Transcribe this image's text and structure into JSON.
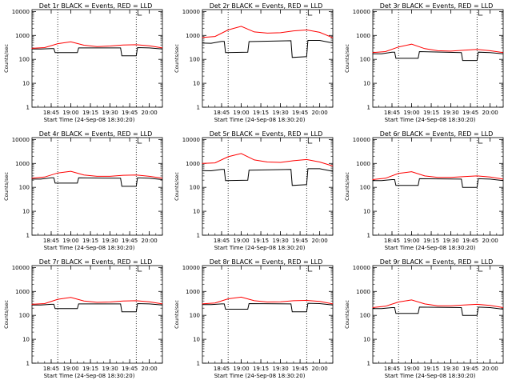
{
  "page": {
    "style": {
      "event_color": "#000000",
      "lld_color": "#ff0000",
      "background": "#ffffff",
      "axes_color": "#000000"
    }
  },
  "chart_data": [
    {
      "type": "line",
      "title": "Det 1r BLACK = Events, RED = LLD",
      "xlabel": "Start Time (24-Sep-08 18:30:20)",
      "ylabel": "Counts/sec",
      "xticks": [
        "18:45",
        "19:00",
        "19:15",
        "19:30",
        "19:45",
        "20:00"
      ],
      "yticks": [
        "1",
        "10",
        "100",
        "1000",
        "10000"
      ],
      "yscale": "log",
      "ylim": [
        1,
        12000
      ],
      "xlim": [
        "18:30:20",
        "20:10"
      ],
      "vlines": [
        "18:50",
        "19:50"
      ],
      "series": [
        {
          "name": "Events",
          "color": "#000000",
          "x": [
            "18:30",
            "18:37",
            "18:45",
            "18:47",
            "18:48",
            "19:05",
            "19:06",
            "19:38",
            "19:39",
            "19:50",
            "19:51",
            "20:00",
            "20:10"
          ],
          "y": [
            270,
            270,
            280,
            280,
            190,
            190,
            300,
            300,
            140,
            140,
            310,
            300,
            270
          ]
        },
        {
          "name": "LLD",
          "color": "#ff0000",
          "x": [
            "18:30",
            "18:40",
            "18:50",
            "19:00",
            "19:10",
            "19:20",
            "19:30",
            "19:40",
            "19:50",
            "20:00",
            "20:10"
          ],
          "y": [
            290,
            310,
            450,
            540,
            390,
            340,
            360,
            400,
            410,
            370,
            300
          ]
        }
      ]
    },
    {
      "type": "line",
      "title": "Det 2r BLACK = Events, RED = LLD",
      "xlabel": "Start Time (24-Sep-08 18:30:20)",
      "ylabel": "Counts/sec",
      "xticks": [
        "18:45",
        "19:00",
        "19:15",
        "19:30",
        "19:45",
        "20:00"
      ],
      "yticks": [
        "1",
        "10",
        "100",
        "1000",
        "10000"
      ],
      "yscale": "log",
      "ylim": [
        1,
        12000
      ],
      "xlim": [
        "18:30:20",
        "20:10"
      ],
      "vlines": [
        "18:50",
        "19:50"
      ],
      "series": [
        {
          "name": "Events",
          "color": "#000000",
          "x": [
            "18:30",
            "18:37",
            "18:45",
            "18:47",
            "18:48",
            "19:05",
            "19:06",
            "19:38",
            "19:39",
            "19:50",
            "19:51",
            "20:00",
            "20:10"
          ],
          "y": [
            480,
            470,
            560,
            560,
            190,
            200,
            550,
            600,
            120,
            130,
            620,
            620,
            480
          ]
        },
        {
          "name": "LLD",
          "color": "#ff0000",
          "x": [
            "18:30",
            "18:40",
            "18:50",
            "19:00",
            "19:10",
            "19:20",
            "19:30",
            "19:40",
            "19:50",
            "20:00",
            "20:10"
          ],
          "y": [
            820,
            900,
            1700,
            2400,
            1400,
            1250,
            1300,
            1550,
            1700,
            1350,
            800
          ]
        }
      ]
    },
    {
      "type": "line",
      "title": "Det 3r BLACK = Events, RED = LLD",
      "xlabel": "Start Time (24-Sep-08 18:30:20)",
      "ylabel": "Counts/sec",
      "xticks": [
        "18:45",
        "19:00",
        "19:15",
        "19:30",
        "19:45",
        "20:00"
      ],
      "yticks": [
        "1",
        "10",
        "100",
        "1000",
        "10000"
      ],
      "yscale": "log",
      "ylim": [
        1,
        12000
      ],
      "xlim": [
        "18:30:20",
        "20:10"
      ],
      "vlines": [
        "18:50",
        "19:50"
      ],
      "series": [
        {
          "name": "Events",
          "color": "#000000",
          "x": [
            "18:30",
            "18:37",
            "18:45",
            "18:47",
            "18:48",
            "19:05",
            "19:06",
            "19:38",
            "19:39",
            "19:50",
            "19:51",
            "20:00",
            "20:10"
          ],
          "y": [
            170,
            170,
            200,
            200,
            110,
            110,
            210,
            190,
            90,
            90,
            200,
            190,
            170
          ]
        },
        {
          "name": "LLD",
          "color": "#ff0000",
          "x": [
            "18:30",
            "18:40",
            "18:50",
            "19:00",
            "19:10",
            "19:20",
            "19:30",
            "19:40",
            "19:50",
            "20:00",
            "20:10"
          ],
          "y": [
            190,
            210,
            330,
            430,
            280,
            230,
            220,
            240,
            260,
            230,
            190
          ]
        }
      ]
    },
    {
      "type": "line",
      "title": "Det 4r BLACK = Events, RED = LLD",
      "xlabel": "Start Time (24-Sep-08 18:30:20)",
      "ylabel": "Counts/sec",
      "xticks": [
        "18:45",
        "19:00",
        "19:15",
        "19:30",
        "19:45",
        "20:00"
      ],
      "yticks": [
        "1",
        "10",
        "100",
        "1000",
        "10000"
      ],
      "yscale": "log",
      "ylim": [
        1,
        12000
      ],
      "xlim": [
        "18:30:20",
        "20:10"
      ],
      "vlines": [
        "18:50",
        "19:50"
      ],
      "series": [
        {
          "name": "Events",
          "color": "#000000",
          "x": [
            "18:30",
            "18:37",
            "18:45",
            "18:47",
            "18:48",
            "19:05",
            "19:06",
            "19:38",
            "19:39",
            "19:50",
            "19:51",
            "20:00",
            "20:10"
          ],
          "y": [
            220,
            220,
            250,
            250,
            150,
            150,
            250,
            240,
            110,
            110,
            250,
            240,
            210
          ]
        },
        {
          "name": "LLD",
          "color": "#ff0000",
          "x": [
            "18:30",
            "18:40",
            "18:50",
            "19:00",
            "19:10",
            "19:20",
            "19:30",
            "19:40",
            "19:50",
            "20:00",
            "20:10"
          ],
          "y": [
            240,
            270,
            400,
            470,
            330,
            290,
            290,
            320,
            330,
            290,
            240
          ]
        }
      ]
    },
    {
      "type": "line",
      "title": "Det 5r BLACK = Events, RED = LLD",
      "xlabel": "Start Time (24-Sep-08 18:30:20)",
      "ylabel": "Counts/sec",
      "xticks": [
        "18:45",
        "19:00",
        "19:15",
        "19:30",
        "19:45",
        "20:00"
      ],
      "yticks": [
        "1",
        "10",
        "100",
        "1000",
        "10000"
      ],
      "yscale": "log",
      "ylim": [
        1,
        12000
      ],
      "xlim": [
        "18:30:20",
        "20:10"
      ],
      "vlines": [
        "18:50",
        "19:50"
      ],
      "series": [
        {
          "name": "Events",
          "color": "#000000",
          "x": [
            "18:30",
            "18:37",
            "18:45",
            "18:47",
            "18:48",
            "19:05",
            "19:06",
            "19:38",
            "19:39",
            "19:50",
            "19:51",
            "20:00",
            "20:10"
          ],
          "y": [
            500,
            490,
            560,
            560,
            190,
            200,
            520,
            560,
            120,
            130,
            600,
            600,
            470
          ]
        },
        {
          "name": "LLD",
          "color": "#ff0000",
          "x": [
            "18:30",
            "18:40",
            "18:50",
            "19:00",
            "19:10",
            "19:20",
            "19:30",
            "19:40",
            "19:50",
            "20:00",
            "20:10"
          ],
          "y": [
            1000,
            1050,
            1900,
            2600,
            1400,
            1150,
            1100,
            1300,
            1450,
            1150,
            780
          ]
        }
      ]
    },
    {
      "type": "line",
      "title": "Det 6r BLACK = Events, RED = LLD",
      "xlabel": "Start Time (24-Sep-08 18:30:20)",
      "ylabel": "Counts/sec",
      "xticks": [
        "18:45",
        "19:00",
        "19:15",
        "19:30",
        "19:45",
        "20:00"
      ],
      "yticks": [
        "1",
        "10",
        "100",
        "1000",
        "10000"
      ],
      "yscale": "log",
      "ylim": [
        1,
        12000
      ],
      "xlim": [
        "18:30:20",
        "20:10"
      ],
      "vlines": [
        "18:50",
        "19:50"
      ],
      "series": [
        {
          "name": "Events",
          "color": "#000000",
          "x": [
            "18:30",
            "18:37",
            "18:45",
            "18:47",
            "18:48",
            "19:05",
            "19:06",
            "19:38",
            "19:39",
            "19:50",
            "19:51",
            "20:00",
            "20:10"
          ],
          "y": [
            190,
            190,
            210,
            210,
            120,
            120,
            230,
            220,
            100,
            100,
            230,
            220,
            190
          ]
        },
        {
          "name": "LLD",
          "color": "#ff0000",
          "x": [
            "18:30",
            "18:40",
            "18:50",
            "19:00",
            "19:10",
            "19:20",
            "19:30",
            "19:40",
            "19:50",
            "20:00",
            "20:10"
          ],
          "y": [
            210,
            240,
            380,
            450,
            300,
            260,
            260,
            280,
            300,
            270,
            220
          ]
        }
      ]
    },
    {
      "type": "line",
      "title": "Det 7r BLACK = Events, RED = LLD",
      "xlabel": "Start Time (24-Sep-08 18:30:20)",
      "ylabel": "Counts/sec",
      "xticks": [
        "18:45",
        "19:00",
        "19:15",
        "19:30",
        "19:45",
        "20:00"
      ],
      "yticks": [
        "1",
        "10",
        "100",
        "1000",
        "10000"
      ],
      "yscale": "log",
      "ylim": [
        1,
        12000
      ],
      "xlim": [
        "18:30:20",
        "20:10"
      ],
      "vlines": [
        "18:50",
        "19:50"
      ],
      "series": [
        {
          "name": "Events",
          "color": "#000000",
          "x": [
            "18:30",
            "18:37",
            "18:45",
            "18:47",
            "18:48",
            "19:05",
            "19:06",
            "19:38",
            "19:39",
            "19:50",
            "19:51",
            "20:00",
            "20:10"
          ],
          "y": [
            270,
            270,
            290,
            290,
            190,
            190,
            300,
            300,
            140,
            140,
            310,
            300,
            270
          ]
        },
        {
          "name": "LLD",
          "color": "#ff0000",
          "x": [
            "18:30",
            "18:40",
            "18:50",
            "19:00",
            "19:10",
            "19:20",
            "19:30",
            "19:40",
            "19:50",
            "20:00",
            "20:10"
          ],
          "y": [
            290,
            310,
            470,
            560,
            400,
            350,
            360,
            400,
            410,
            370,
            300
          ]
        }
      ]
    },
    {
      "type": "line",
      "title": "Det 8r BLACK = Events, RED = LLD",
      "xlabel": "Start Time (24-Sep-08 18:30:20)",
      "ylabel": "Counts/sec",
      "xticks": [
        "18:45",
        "19:00",
        "19:15",
        "19:30",
        "19:45",
        "20:00"
      ],
      "yticks": [
        "1",
        "10",
        "100",
        "1000",
        "10000"
      ],
      "yscale": "log",
      "ylim": [
        1,
        12000
      ],
      "xlim": [
        "18:30:20",
        "20:10"
      ],
      "vlines": [
        "18:50",
        "19:50"
      ],
      "series": [
        {
          "name": "Events",
          "color": "#000000",
          "x": [
            "18:30",
            "18:37",
            "18:45",
            "18:47",
            "18:48",
            "19:05",
            "19:06",
            "19:38",
            "19:39",
            "19:50",
            "19:51",
            "20:00",
            "20:10"
          ],
          "y": [
            280,
            280,
            300,
            300,
            180,
            180,
            310,
            300,
            140,
            140,
            320,
            310,
            270
          ]
        },
        {
          "name": "LLD",
          "color": "#ff0000",
          "x": [
            "18:30",
            "18:40",
            "18:50",
            "19:00",
            "19:10",
            "19:20",
            "19:30",
            "19:40",
            "19:50",
            "20:00",
            "20:10"
          ],
          "y": [
            300,
            330,
            490,
            580,
            410,
            360,
            370,
            410,
            420,
            380,
            300
          ]
        }
      ]
    },
    {
      "type": "line",
      "title": "Det 9r BLACK = Events, RED = LLD",
      "xlabel": "Start Time (24-Sep-08 18:30:20)",
      "ylabel": "Counts/sec",
      "xticks": [
        "18:45",
        "19:00",
        "19:15",
        "19:30",
        "19:45",
        "20:00"
      ],
      "yticks": [
        "1",
        "10",
        "100",
        "1000",
        "10000"
      ],
      "yscale": "log",
      "ylim": [
        1,
        12000
      ],
      "xlim": [
        "18:30:20",
        "20:10"
      ],
      "vlines": [
        "18:50",
        "19:50"
      ],
      "series": [
        {
          "name": "Events",
          "color": "#000000",
          "x": [
            "18:30",
            "18:37",
            "18:45",
            "18:47",
            "18:48",
            "19:05",
            "19:06",
            "19:38",
            "19:39",
            "19:50",
            "19:51",
            "20:00",
            "20:10"
          ],
          "y": [
            190,
            190,
            210,
            210,
            120,
            120,
            220,
            210,
            100,
            100,
            220,
            210,
            180
          ]
        },
        {
          "name": "LLD",
          "color": "#ff0000",
          "x": [
            "18:30",
            "18:40",
            "18:50",
            "19:00",
            "19:10",
            "19:20",
            "19:30",
            "19:40",
            "19:50",
            "20:00",
            "20:10"
          ],
          "y": [
            210,
            240,
            360,
            440,
            300,
            250,
            250,
            270,
            290,
            260,
            210
          ]
        }
      ]
    }
  ]
}
